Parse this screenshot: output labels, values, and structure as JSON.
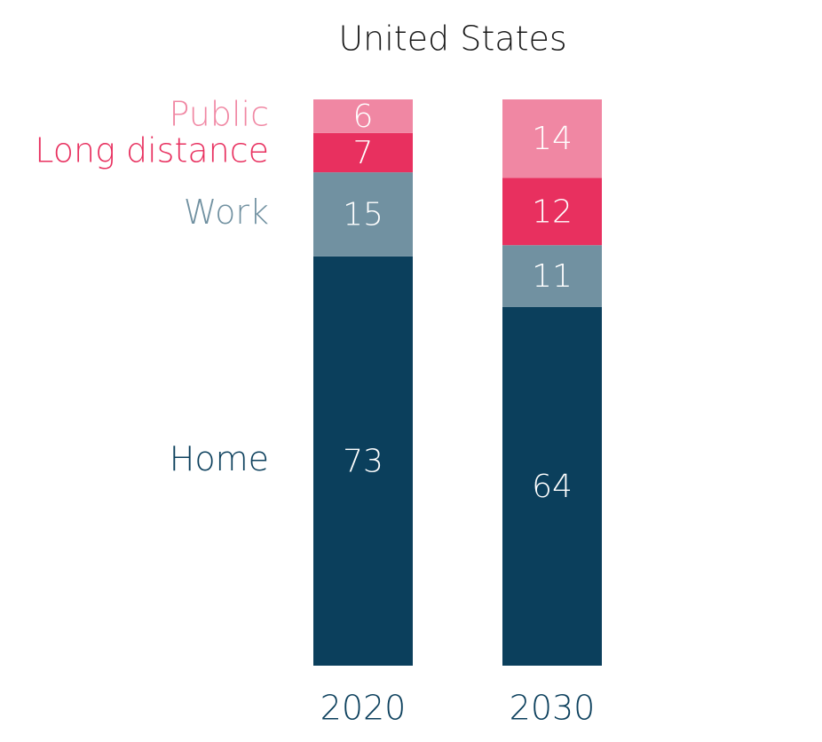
{
  "chart_data": {
    "type": "stacked_bar",
    "title": "United States",
    "categories": [
      "2020",
      "2030"
    ],
    "series": [
      {
        "name": "Home",
        "color": "#0b3f5c",
        "values": [
          73,
          64
        ]
      },
      {
        "name": "Work",
        "color": "#7191a1",
        "values": [
          15,
          11
        ]
      },
      {
        "name": "Long distance",
        "color": "#e8305f",
        "values": [
          7,
          12
        ]
      },
      {
        "name": "Public",
        "color": "#f087a3",
        "values": [
          6,
          14
        ]
      }
    ]
  }
}
